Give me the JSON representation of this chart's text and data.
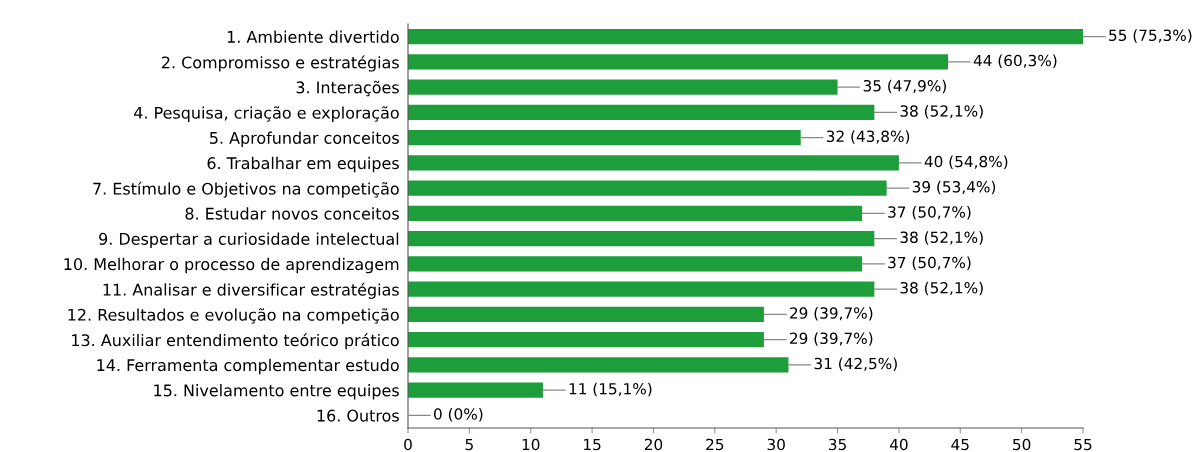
{
  "chart_data": {
    "type": "bar",
    "orientation": "horizontal",
    "categories": [
      "1. Ambiente divertido",
      "2. Compromisso e estratégias",
      "3. Interações",
      "4. Pesquisa, criação e exploração",
      "5. Aprofundar conceitos",
      "6. Trabalhar em equipes",
      "7. Estímulo e Objetivos na competição",
      "8. Estudar novos conceitos",
      "9. Despertar a curiosidade intelectual",
      "10. Melhorar o processo de aprendizagem",
      "11. Analisar e diversificar estratégias",
      "12. Resultados e evolução na competição",
      "13. Auxiliar entendimento teórico prático",
      "14. Ferramenta complementar estudo",
      "15. Nivelamento entre equipes",
      "16. Outros"
    ],
    "values": [
      55,
      44,
      35,
      38,
      32,
      40,
      39,
      37,
      38,
      37,
      38,
      29,
      29,
      31,
      11,
      0
    ],
    "value_labels": [
      "55 (75,3%)",
      "44 (60,3%)",
      "35 (47,9%)",
      "38 (52,1%)",
      "32 (43,8%)",
      "40 (54,8%)",
      "39 (53,4%)",
      "37 (50,7%)",
      "38 (52,1%)",
      "37 (50,7%)",
      "38 (52,1%)",
      "29 (39,7%)",
      "29 (39,7%)",
      "31 (42,5%)",
      "11 (15,1%)",
      "0 (0%)"
    ],
    "color": "#1e9e3a",
    "xlim": [
      0,
      55
    ],
    "xticks": [
      0,
      5,
      10,
      15,
      20,
      25,
      30,
      35,
      40,
      45,
      50,
      55
    ],
    "grid": false,
    "legend": false
  }
}
